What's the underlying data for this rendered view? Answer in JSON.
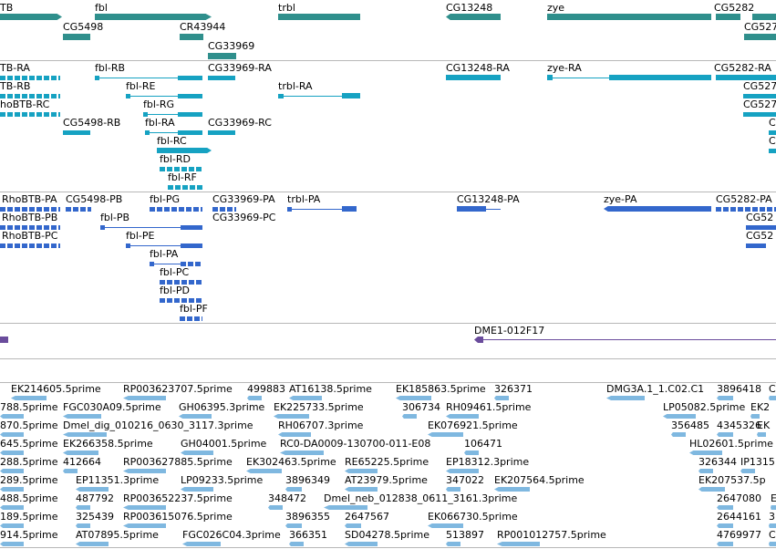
{
  "colors": {
    "gene": "#2f8f8c",
    "flybase": "#16a2c2",
    "refseq": "#3367cc",
    "clone": "#6a4c9c",
    "est": "#7fb8e0",
    "separator": "#b8b8b8"
  },
  "tracks": {
    "genes": {
      "labels": [
        "TB",
        "fbl",
        "trbl",
        "CG13248",
        "zye",
        "CG5282",
        "CG5498",
        "CR43944",
        "CG33969",
        "CG527"
      ]
    },
    "flybase": {
      "labels": [
        "TB-RA",
        "fbl-RB",
        "CG33969-RA",
        "CG13248-RA",
        "zye-RA",
        "CG5282-RA",
        "TB-RB",
        "fbl-RE",
        "trbl-RA",
        "CG527",
        "hoBTB-RC",
        "fbl-RG",
        "CG527",
        "CG5498-RB",
        "fbl-RA",
        "CG33969-RC",
        "C",
        "fbl-RC",
        "C",
        "fbl-RD",
        "fbl-RF"
      ]
    },
    "refseq": {
      "labels": [
        "RhoBTB-PA",
        "CG5498-PB",
        "fbl-PG",
        "CG33969-PA",
        "trbl-PA",
        "CG13248-PA",
        "zye-PA",
        "CG5282-PA",
        "RhoBTB-PB",
        "fbl-PB",
        "CG33969-PC",
        "CG52",
        "RhoBTB-PC",
        "fbl-PE",
        "CG52",
        "fbl-PA",
        "fbl-PC",
        "fbl-PD",
        "fbl-PF"
      ]
    },
    "clones": {
      "labels": [
        "DME1-012F17"
      ]
    },
    "ests": {
      "labels": [
        "EK214605.5prime",
        "RP003623707.5prime",
        "499883",
        "AT16138.5prime",
        "EK185863.5prime",
        "326371",
        "DMG3A.1_1.C02.C1",
        "3896418",
        "C",
        "788.5prime",
        "FGC030A09.5prime",
        "GH06395.3prime",
        "EK225733.5prime",
        "306734",
        "RH09461.5prime",
        "LP05082.5prime",
        "EK2",
        "870.5prime",
        "Dmel_dig_010216_0630_3117.3prime",
        "RH06707.3prime",
        "EK076921.5prime",
        "356485",
        "4345326",
        "EK",
        "645.5prime",
        "EK266358.5prime",
        "GH04001.5prime",
        "RC0-DA0009-130700-011-E08",
        "106471",
        "HL02601.5prime",
        "288.5prime",
        "412664",
        "RP003627885.5prime",
        "EK302463.5prime",
        "RE65225.5prime",
        "EP18312.3prime",
        "326344",
        "IP1315",
        "289.5prime",
        "EP11351.3prime",
        "LP09233.5prime",
        "3896349",
        "AT23979.5prime",
        "347022",
        "EK207564.5prime",
        "EK207537.5p",
        "488.5prime",
        "487792",
        "RP003652237.5prime",
        "348472",
        "Dmel_neb_012838_0611_3161.3prime",
        "2647080",
        "E",
        "189.5prime",
        "325439",
        "RP003615076.5prime",
        "3896355",
        "2647567",
        "EK066730.5prime",
        "2644161",
        "3",
        "914.5prime",
        "AT07895.5prime",
        "FGC026C04.3prime",
        "366351",
        "SD04278.5prime",
        "513897",
        "RP001012757.5prime",
        "4769977",
        "C"
      ]
    }
  }
}
